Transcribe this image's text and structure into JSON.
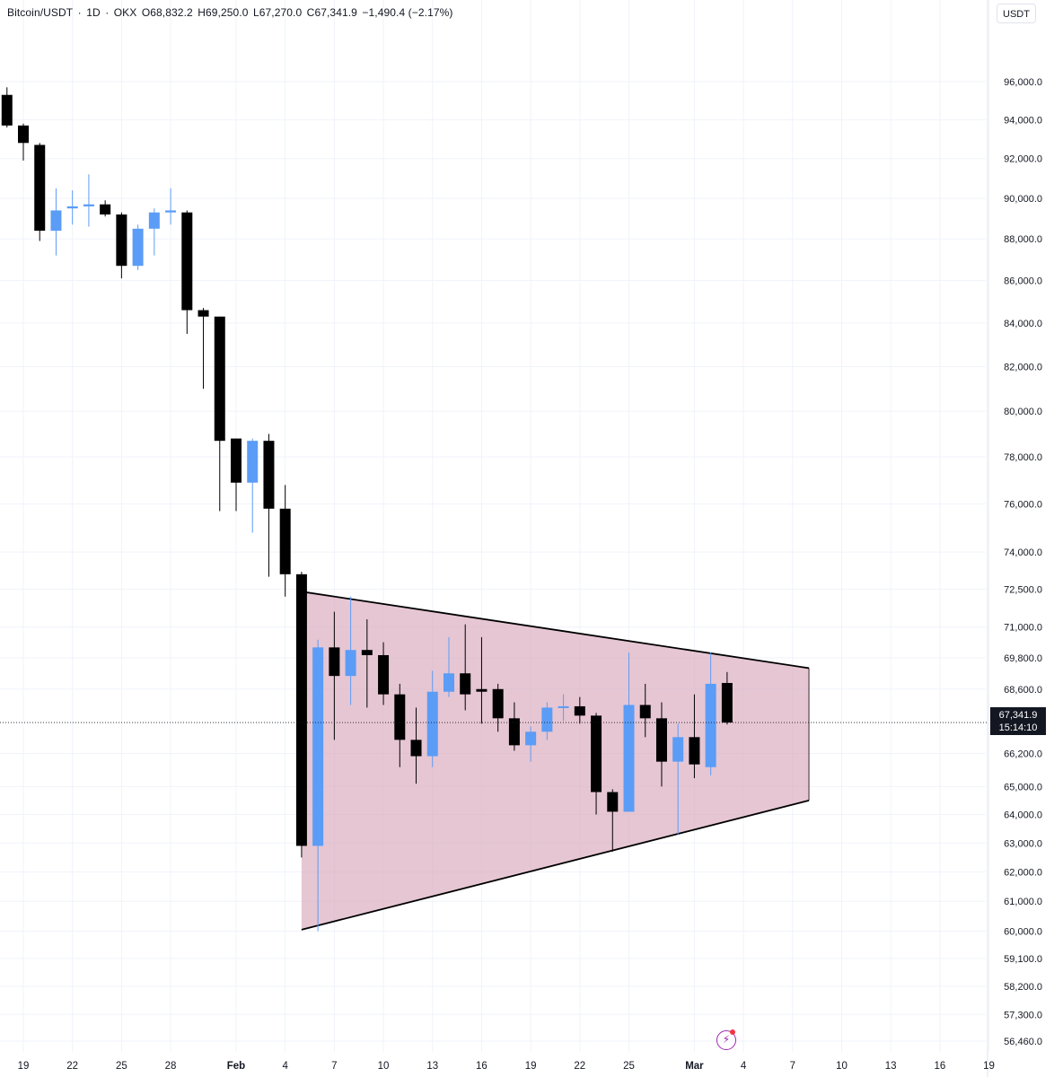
{
  "header": {
    "symbol": "Bitcoin/USDT",
    "interval": "1D",
    "exchange": "OKX",
    "open": "O68,832.2",
    "high": "H69,250.0",
    "low": "L67,270.0",
    "close": "C67,341.9",
    "change": "−1,490.4 (−2.17%)"
  },
  "currency": "USDT",
  "last_price": {
    "value": "67,341.9",
    "countdown": "15:14:10"
  },
  "colors": {
    "up": "#5b9cf6",
    "down": "#000000",
    "pattern_fill": "#d8a7bc",
    "pattern_line": "#000000",
    "grid": "#f0f3fa"
  },
  "chart_data": {
    "type": "candlestick",
    "scale": "log",
    "ylim": [
      56000,
      98500
    ],
    "y_ticks": [
      {
        "value": 96000,
        "label": "96,000.0"
      },
      {
        "value": 94000,
        "label": "94,000.0"
      },
      {
        "value": 92000,
        "label": "92,000.0"
      },
      {
        "value": 90000,
        "label": "90,000.0"
      },
      {
        "value": 88000,
        "label": "88,000.0"
      },
      {
        "value": 86000,
        "label": "86,000.0"
      },
      {
        "value": 84000,
        "label": "84,000.0"
      },
      {
        "value": 82000,
        "label": "82,000.0"
      },
      {
        "value": 80000,
        "label": "80,000.0"
      },
      {
        "value": 78000,
        "label": "78,000.0"
      },
      {
        "value": 76000,
        "label": "76,000.0"
      },
      {
        "value": 74000,
        "label": "74,000.0"
      },
      {
        "value": 72500,
        "label": "72,500.0"
      },
      {
        "value": 71000,
        "label": "71,000.0"
      },
      {
        "value": 69800,
        "label": "69,800.0"
      },
      {
        "value": 68600,
        "label": "68,600.0"
      },
      {
        "value": 66200,
        "label": "66,200.0"
      },
      {
        "value": 65000,
        "label": "65,000.0"
      },
      {
        "value": 64000,
        "label": "64,000.0"
      },
      {
        "value": 63000,
        "label": "63,000.0"
      },
      {
        "value": 62000,
        "label": "62,000.0"
      },
      {
        "value": 61000,
        "label": "61,000.0"
      },
      {
        "value": 60000,
        "label": "60,000.0"
      },
      {
        "value": 59100,
        "label": "59,100.0"
      },
      {
        "value": 58200,
        "label": "58,200.0"
      },
      {
        "value": 57300,
        "label": "57,300.0"
      },
      {
        "value": 56460,
        "label": "56,460.0"
      }
    ],
    "x_ticks": [
      {
        "date": "2026-01-19",
        "label": "19"
      },
      {
        "date": "2026-01-22",
        "label": "22"
      },
      {
        "date": "2026-01-25",
        "label": "25"
      },
      {
        "date": "2026-01-28",
        "label": "28"
      },
      {
        "date": "2026-02-01",
        "label": "Feb"
      },
      {
        "date": "2026-02-04",
        "label": "4"
      },
      {
        "date": "2026-02-07",
        "label": "7"
      },
      {
        "date": "2026-02-10",
        "label": "10"
      },
      {
        "date": "2026-02-13",
        "label": "13"
      },
      {
        "date": "2026-02-16",
        "label": "16"
      },
      {
        "date": "2026-02-19",
        "label": "19"
      },
      {
        "date": "2026-02-22",
        "label": "22"
      },
      {
        "date": "2026-02-25",
        "label": "25"
      },
      {
        "date": "2026-03-01",
        "label": "Mar"
      },
      {
        "date": "2026-03-04",
        "label": "4"
      },
      {
        "date": "2026-03-07",
        "label": "7"
      },
      {
        "date": "2026-03-10",
        "label": "10"
      },
      {
        "date": "2026-03-13",
        "label": "13"
      },
      {
        "date": "2026-03-16",
        "label": "16"
      },
      {
        "date": "2026-03-19",
        "label": "19"
      }
    ],
    "candles": [
      {
        "date": "2026-01-18",
        "o": 95300,
        "h": 95700,
        "l": 93600,
        "c": 93700
      },
      {
        "date": "2026-01-19",
        "o": 93700,
        "h": 93800,
        "l": 91900,
        "c": 92800
      },
      {
        "date": "2026-01-20",
        "o": 92700,
        "h": 92800,
        "l": 87900,
        "c": 88400
      },
      {
        "date": "2026-01-21",
        "o": 88400,
        "h": 90500,
        "l": 87200,
        "c": 89400
      },
      {
        "date": "2026-01-22",
        "o": 89500,
        "h": 90400,
        "l": 88700,
        "c": 89600
      },
      {
        "date": "2026-01-23",
        "o": 89600,
        "h": 91200,
        "l": 88600,
        "c": 89700
      },
      {
        "date": "2026-01-24",
        "o": 89700,
        "h": 89900,
        "l": 89100,
        "c": 89200
      },
      {
        "date": "2026-01-25",
        "o": 89200,
        "h": 89300,
        "l": 86100,
        "c": 86700
      },
      {
        "date": "2026-01-26",
        "o": 86700,
        "h": 88700,
        "l": 86500,
        "c": 88500
      },
      {
        "date": "2026-01-27",
        "o": 88500,
        "h": 89500,
        "l": 87200,
        "c": 89300
      },
      {
        "date": "2026-01-28",
        "o": 89300,
        "h": 90500,
        "l": 88700,
        "c": 89400
      },
      {
        "date": "2026-01-29",
        "o": 89300,
        "h": 89400,
        "l": 83500,
        "c": 84600
      },
      {
        "date": "2026-01-30",
        "o": 84600,
        "h": 84700,
        "l": 81000,
        "c": 84300
      },
      {
        "date": "2026-01-31",
        "o": 84300,
        "h": 84300,
        "l": 75700,
        "c": 78700
      },
      {
        "date": "2026-02-01",
        "o": 78800,
        "h": 78800,
        "l": 75700,
        "c": 76900
      },
      {
        "date": "2026-02-02",
        "o": 76900,
        "h": 78800,
        "l": 74800,
        "c": 78700
      },
      {
        "date": "2026-02-03",
        "o": 78700,
        "h": 79000,
        "l": 73000,
        "c": 75800
      },
      {
        "date": "2026-02-04",
        "o": 75800,
        "h": 76800,
        "l": 72200,
        "c": 73100
      },
      {
        "date": "2026-02-05",
        "o": 73100,
        "h": 73200,
        "l": 62500,
        "c": 62900
      },
      {
        "date": "2026-02-06",
        "o": 62900,
        "h": 70500,
        "l": 60000,
        "c": 70200
      },
      {
        "date": "2026-02-07",
        "o": 70200,
        "h": 71600,
        "l": 66700,
        "c": 69100
      },
      {
        "date": "2026-02-08",
        "o": 69100,
        "h": 72200,
        "l": 68000,
        "c": 70100
      },
      {
        "date": "2026-02-09",
        "o": 70100,
        "h": 71300,
        "l": 67900,
        "c": 69900
      },
      {
        "date": "2026-02-10",
        "o": 69900,
        "h": 70400,
        "l": 68000,
        "c": 68400
      },
      {
        "date": "2026-02-11",
        "o": 68400,
        "h": 68800,
        "l": 65700,
        "c": 66700
      },
      {
        "date": "2026-02-12",
        "o": 66700,
        "h": 67900,
        "l": 65100,
        "c": 66100
      },
      {
        "date": "2026-02-13",
        "o": 66100,
        "h": 69300,
        "l": 65700,
        "c": 68500
      },
      {
        "date": "2026-02-14",
        "o": 68500,
        "h": 70600,
        "l": 68300,
        "c": 69200
      },
      {
        "date": "2026-02-15",
        "o": 69200,
        "h": 71100,
        "l": 67800,
        "c": 68400
      },
      {
        "date": "2026-02-16",
        "o": 68600,
        "h": 70600,
        "l": 67300,
        "c": 68500
      },
      {
        "date": "2026-02-17",
        "o": 68600,
        "h": 68800,
        "l": 67000,
        "c": 67500
      },
      {
        "date": "2026-02-18",
        "o": 67500,
        "h": 68100,
        "l": 66300,
        "c": 66500
      },
      {
        "date": "2026-02-19",
        "o": 66500,
        "h": 67200,
        "l": 65900,
        "c": 67000
      },
      {
        "date": "2026-02-20",
        "o": 67000,
        "h": 68100,
        "l": 66700,
        "c": 67900
      },
      {
        "date": "2026-02-21",
        "o": 67900,
        "h": 68400,
        "l": 67400,
        "c": 67950
      },
      {
        "date": "2026-02-22",
        "o": 67950,
        "h": 68300,
        "l": 67300,
        "c": 67600
      },
      {
        "date": "2026-02-23",
        "o": 67600,
        "h": 67700,
        "l": 64000,
        "c": 64800
      },
      {
        "date": "2026-02-24",
        "o": 64800,
        "h": 64900,
        "l": 62700,
        "c": 64100
      },
      {
        "date": "2026-02-25",
        "o": 64100,
        "h": 70000,
        "l": 64100,
        "c": 68000
      },
      {
        "date": "2026-02-26",
        "o": 68000,
        "h": 68800,
        "l": 66800,
        "c": 67500
      },
      {
        "date": "2026-02-27",
        "o": 67500,
        "h": 68100,
        "l": 65000,
        "c": 65900
      },
      {
        "date": "2026-02-28",
        "o": 65900,
        "h": 67300,
        "l": 63300,
        "c": 66800
      },
      {
        "date": "2026-03-01",
        "o": 66800,
        "h": 68400,
        "l": 65300,
        "c": 65800
      },
      {
        "date": "2026-03-02",
        "o": 65700,
        "h": 70000,
        "l": 65400,
        "c": 68800
      },
      {
        "date": "2026-03-03",
        "o": 68832.2,
        "h": 69250,
        "l": 67270,
        "c": 67341.9
      }
    ],
    "pattern": {
      "name": "symmetrical triangle",
      "upper": [
        {
          "date": "2026-02-05",
          "price": 72400
        },
        {
          "date": "2026-03-08",
          "price": 69400
        }
      ],
      "lower": [
        {
          "date": "2026-02-05",
          "price": 60050
        },
        {
          "date": "2026-03-08",
          "price": 64500
        }
      ]
    }
  }
}
